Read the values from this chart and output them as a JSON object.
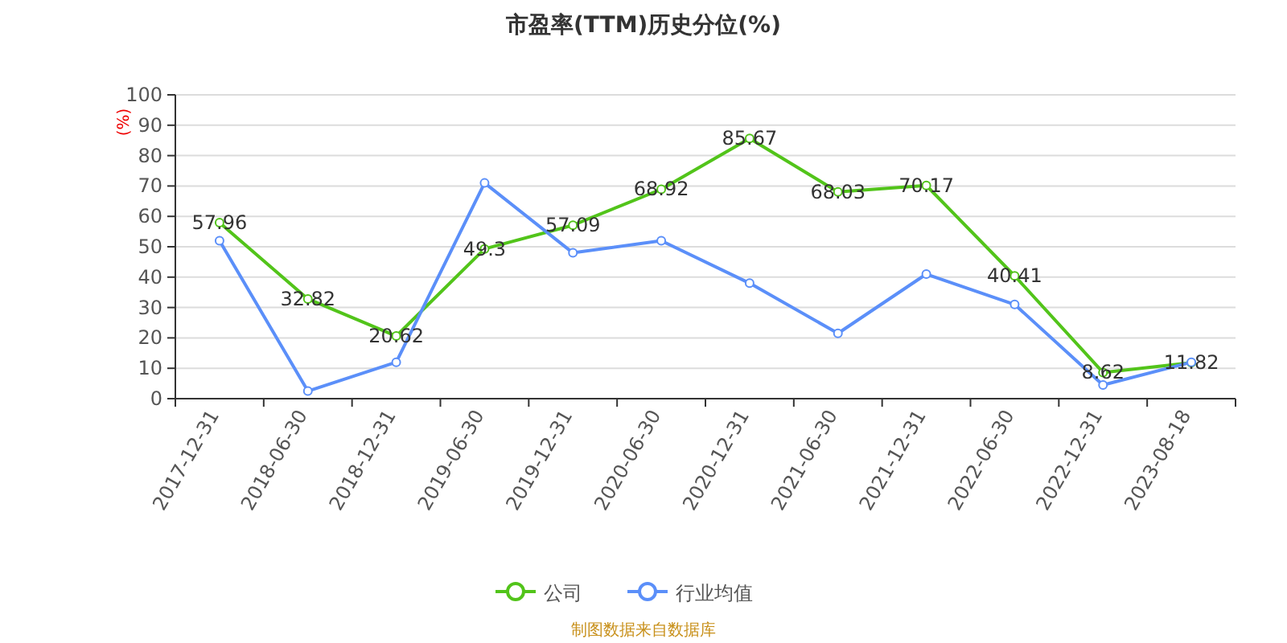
{
  "chart_data": {
    "type": "line",
    "title": "市盈率(TTM)历史分位(%)",
    "ylabel": "(%)",
    "categories": [
      "2017-12-31",
      "2018-06-30",
      "2018-12-31",
      "2019-06-30",
      "2019-12-31",
      "2020-06-30",
      "2020-12-31",
      "2021-06-30",
      "2021-12-31",
      "2022-06-30",
      "2022-12-31",
      "2023-08-18"
    ],
    "series": [
      {
        "name": "公司",
        "color": "#52c41a",
        "values": [
          57.96,
          32.82,
          20.62,
          49.3,
          57.09,
          68.92,
          85.67,
          68.03,
          70.17,
          40.41,
          8.62,
          11.82
        ],
        "value_labels": [
          "57.96",
          "32.82",
          "20.62",
          "49.3",
          "57.09",
          "68.92",
          "85.67",
          "68.03",
          "70.17",
          "40.41",
          "8.62",
          "11.82"
        ]
      },
      {
        "name": "行业均值",
        "color": "#5b8ff9",
        "values": [
          52,
          2.5,
          12,
          71,
          48,
          52,
          38,
          21.5,
          41,
          31,
          4.5,
          12
        ]
      }
    ],
    "ylim": [
      0,
      100
    ],
    "yticks": [
      0,
      10,
      20,
      30,
      40,
      50,
      60,
      70,
      80,
      90,
      100
    ],
    "grid": "y",
    "legend": "bottom",
    "marker": "circle",
    "annotations": [
      "制图数据来自数据库"
    ]
  }
}
